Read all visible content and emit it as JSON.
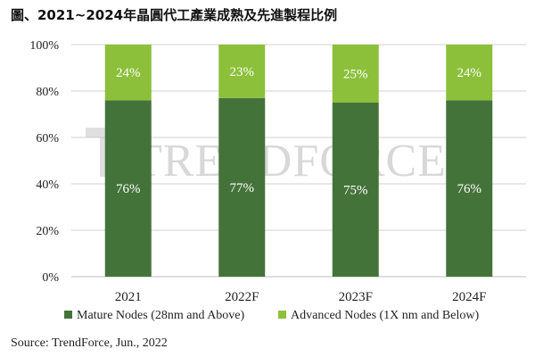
{
  "title": "圖、2021~2024年晶圓代工產業成熟及先進製程比例",
  "source": "Source: TrendForce, Jun., 2022",
  "watermark": "TRENDFORCE",
  "colors": {
    "mature": "#44733a",
    "advanced": "#8cc03a",
    "grid": "#d0d0d0",
    "axis": "#bdbdbd"
  },
  "chart_data": {
    "type": "bar",
    "stacked": true,
    "categories": [
      "2021",
      "2022F",
      "2023F",
      "2024F"
    ],
    "series": [
      {
        "name": "Mature Nodes (28nm and Above)",
        "values": [
          76,
          77,
          75,
          76
        ],
        "labels": [
          "76%",
          "77%",
          "75%",
          "76%"
        ]
      },
      {
        "name": "Advanced Nodes (1X nm and Below)",
        "values": [
          24,
          23,
          25,
          24
        ],
        "labels": [
          "24%",
          "23%",
          "25%",
          "24%"
        ]
      }
    ],
    "ylim": [
      0,
      100
    ],
    "yticks": [
      "0%",
      "20%",
      "40%",
      "60%",
      "80%",
      "100%"
    ],
    "grid": true,
    "legend": "bottom"
  }
}
